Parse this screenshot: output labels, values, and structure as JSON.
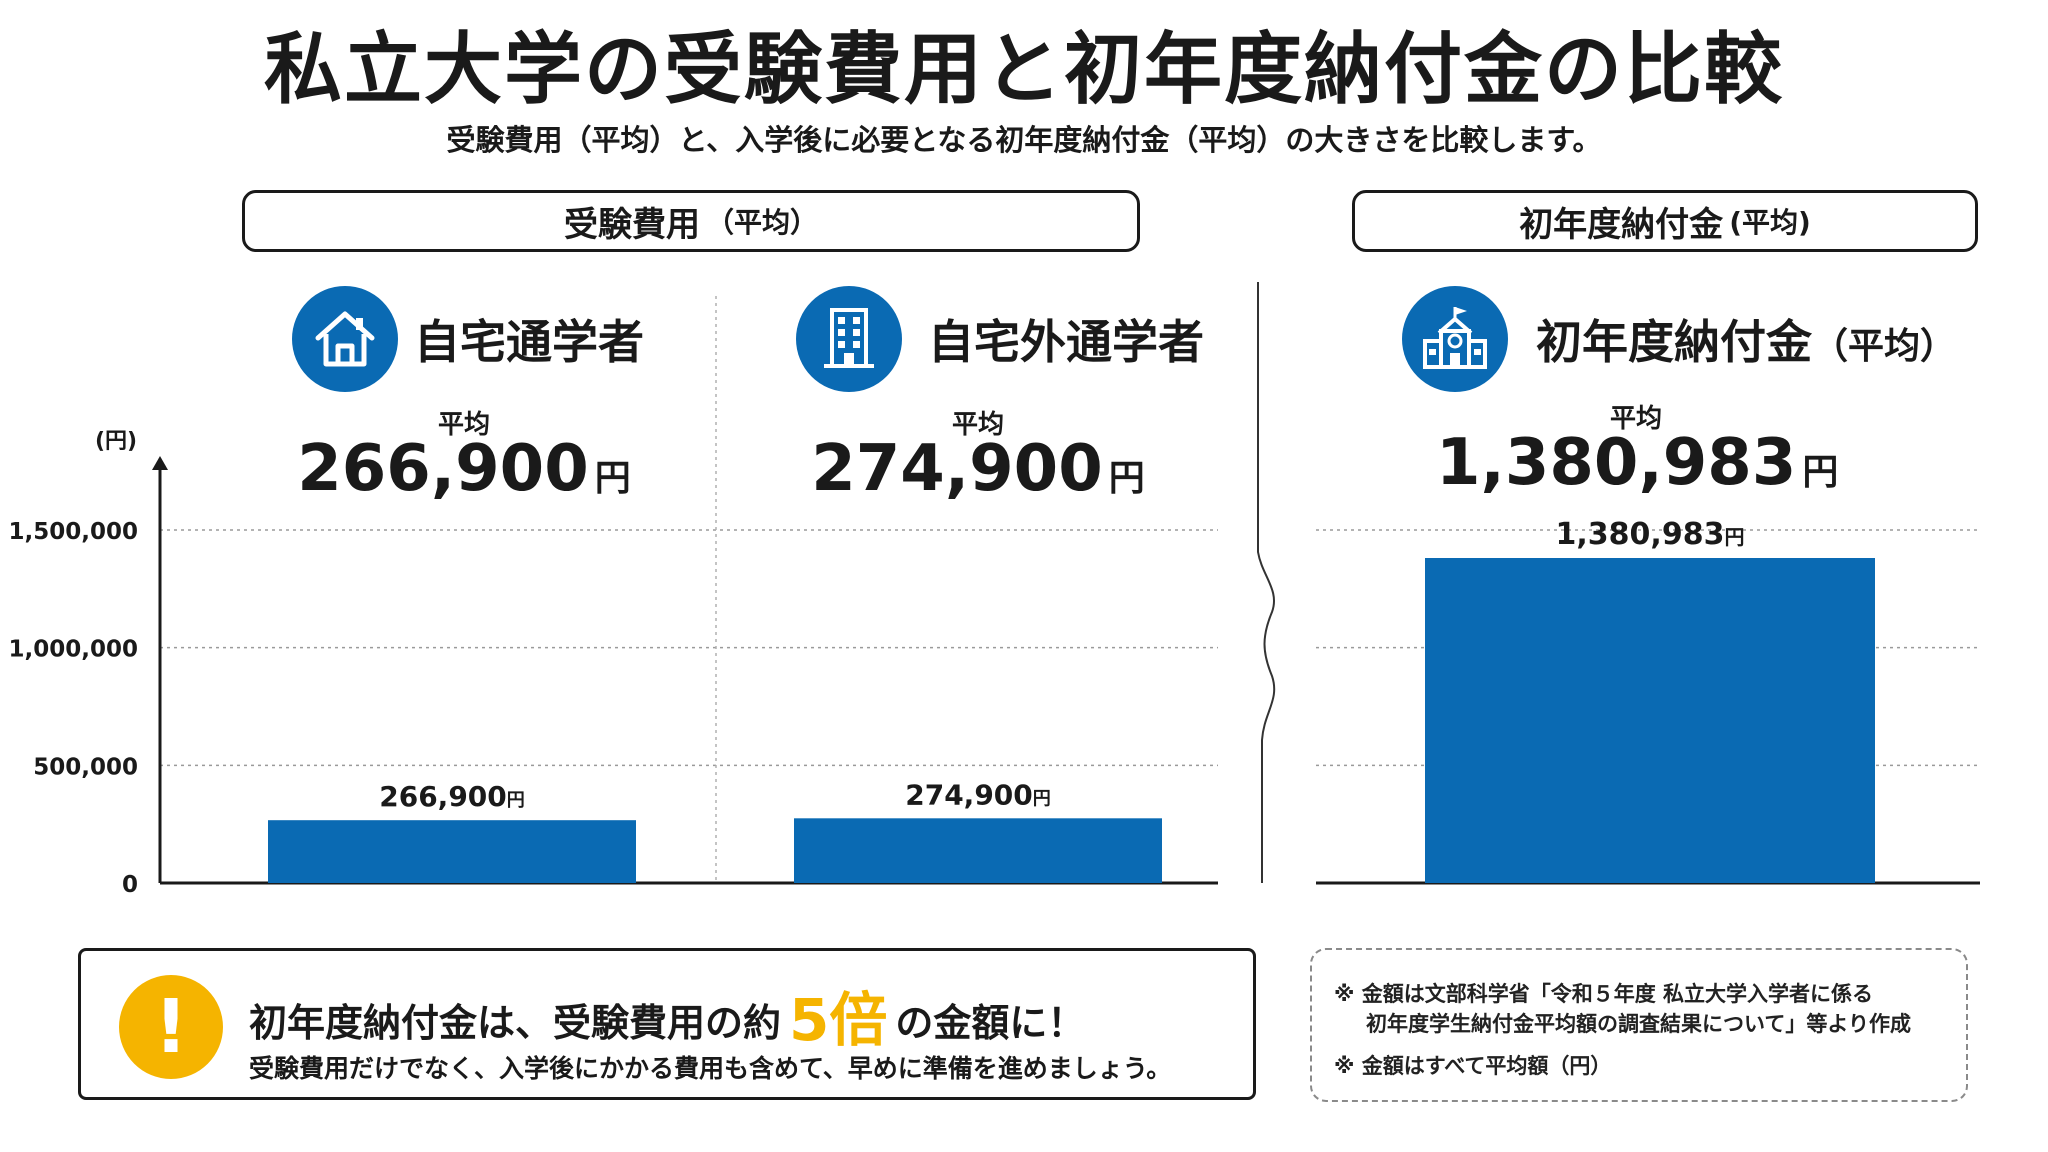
{
  "title": "私立大学の受験費用と初年度納付金の比較",
  "subtitle": "受験費用（平均）と、入学後に必要となる初年度納付金（平均）の大きさを比較します。",
  "sections": {
    "exam_cost": {
      "label": "受験費用",
      "label_suffix": "（平均）"
    },
    "first_year": {
      "label": "初年度納付金",
      "label_suffix": "(平均)"
    }
  },
  "categories": [
    {
      "label": "自宅通学者",
      "icon": "house-icon",
      "avg_label": "平均",
      "value_text": "266,900",
      "unit": "円"
    },
    {
      "label": "自宅外通学者",
      "icon": "building-icon",
      "avg_label": "平均",
      "value_text": "274,900",
      "unit": "円"
    },
    {
      "label": "初年度納付金",
      "label_suffix": "（平均）",
      "icon": "school-icon",
      "avg_label": "平均",
      "value_text": "1,380,983",
      "unit": "円"
    }
  ],
  "chart_data": {
    "type": "bar",
    "categories": [
      "自宅通学者",
      "自宅外通学者",
      "初年度納付金"
    ],
    "values": [
      266900,
      274900,
      1380983
    ],
    "data_labels": [
      "266,900",
      "274,900",
      "1,380,983"
    ],
    "data_label_unit": "円",
    "ylabel": "(円)",
    "ylim": [
      0,
      1500000
    ],
    "yticks": [
      0,
      500000,
      1000000,
      1500000
    ],
    "ytick_labels": [
      "0",
      "500,000",
      "1,000,000",
      "1,500,000"
    ],
    "grid": true,
    "axis_break": true,
    "bar_color": "#0a6ab3"
  },
  "callout": {
    "icon": "exclamation-icon",
    "main_before": "初年度納付金は、受験費用の約",
    "highlight": "5倍",
    "main_after": "の金額に！",
    "sub": "受験費用だけでなく、入学後にかかる費用も含めて、早めに準備を進めましょう。"
  },
  "notes": {
    "line1": "※ 金額は文部科学省「令和５年度 私立大学入学者に係る",
    "line2": "初年度学生納付金平均額の調査結果について」等より作成",
    "line3": "※ 金額はすべて平均額（円）"
  },
  "colors": {
    "accent_blue": "#0a6ab3",
    "highlight_yellow": "#f5b400"
  }
}
